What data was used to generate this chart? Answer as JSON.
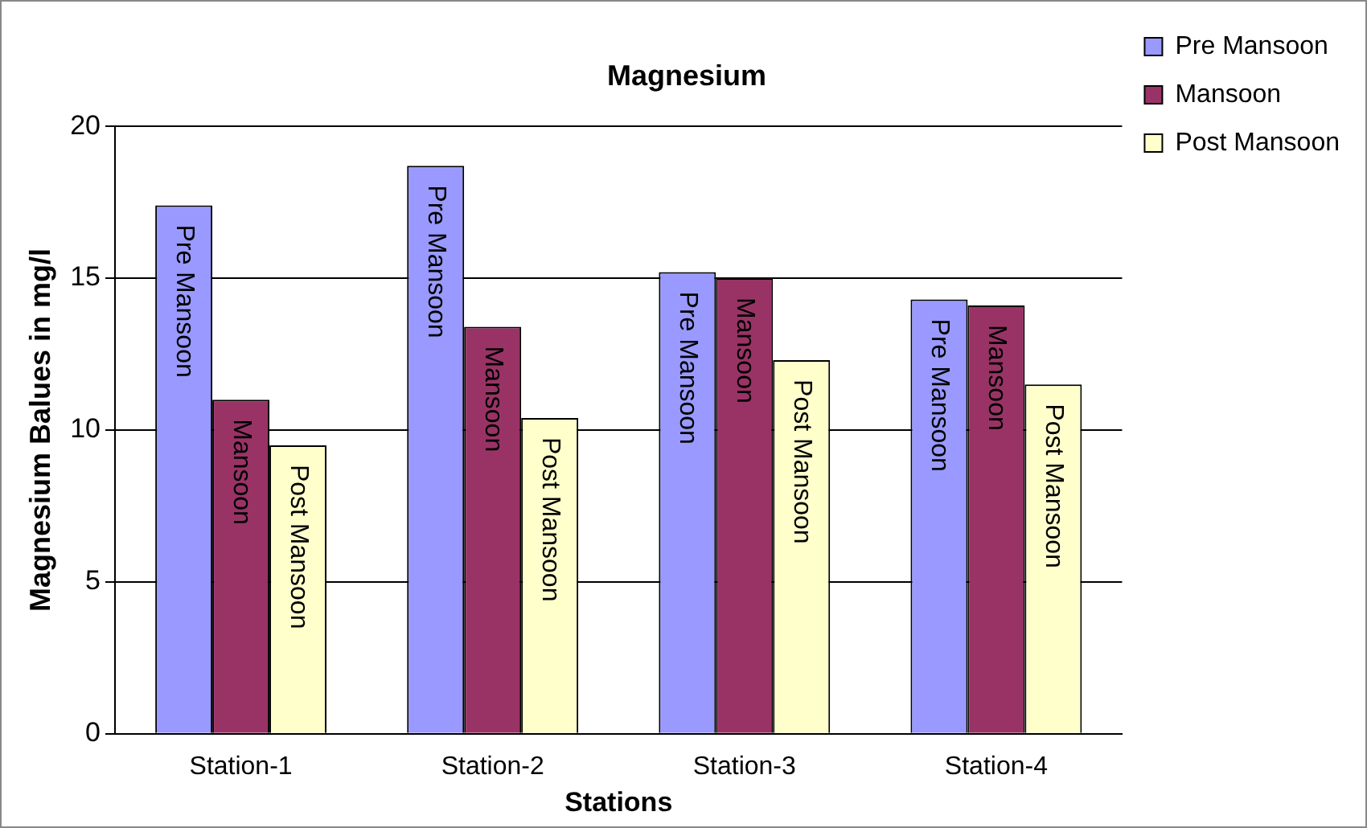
{
  "chart_data": {
    "type": "bar",
    "title": "Magnesium",
    "xlabel": "Stations",
    "ylabel": "Magnesium Balues in mg/l",
    "categories": [
      "Station-1",
      "Station-2",
      "Station-3",
      "Station-4"
    ],
    "series": [
      {
        "name": "Pre Mansoon",
        "color": "#9999ff",
        "values": [
          17.4,
          18.7,
          15.2,
          14.3
        ]
      },
      {
        "name": "Mansoon",
        "color": "#993366",
        "values": [
          11.0,
          13.4,
          15.0,
          14.1
        ]
      },
      {
        "name": "Post Mansoon",
        "color": "#ffffcc",
        "values": [
          9.5,
          10.4,
          12.3,
          11.5
        ]
      }
    ],
    "ylim": [
      0,
      20
    ],
    "yticks": [
      0,
      5,
      10,
      15,
      20
    ],
    "grid": "y",
    "legend": "top right"
  }
}
